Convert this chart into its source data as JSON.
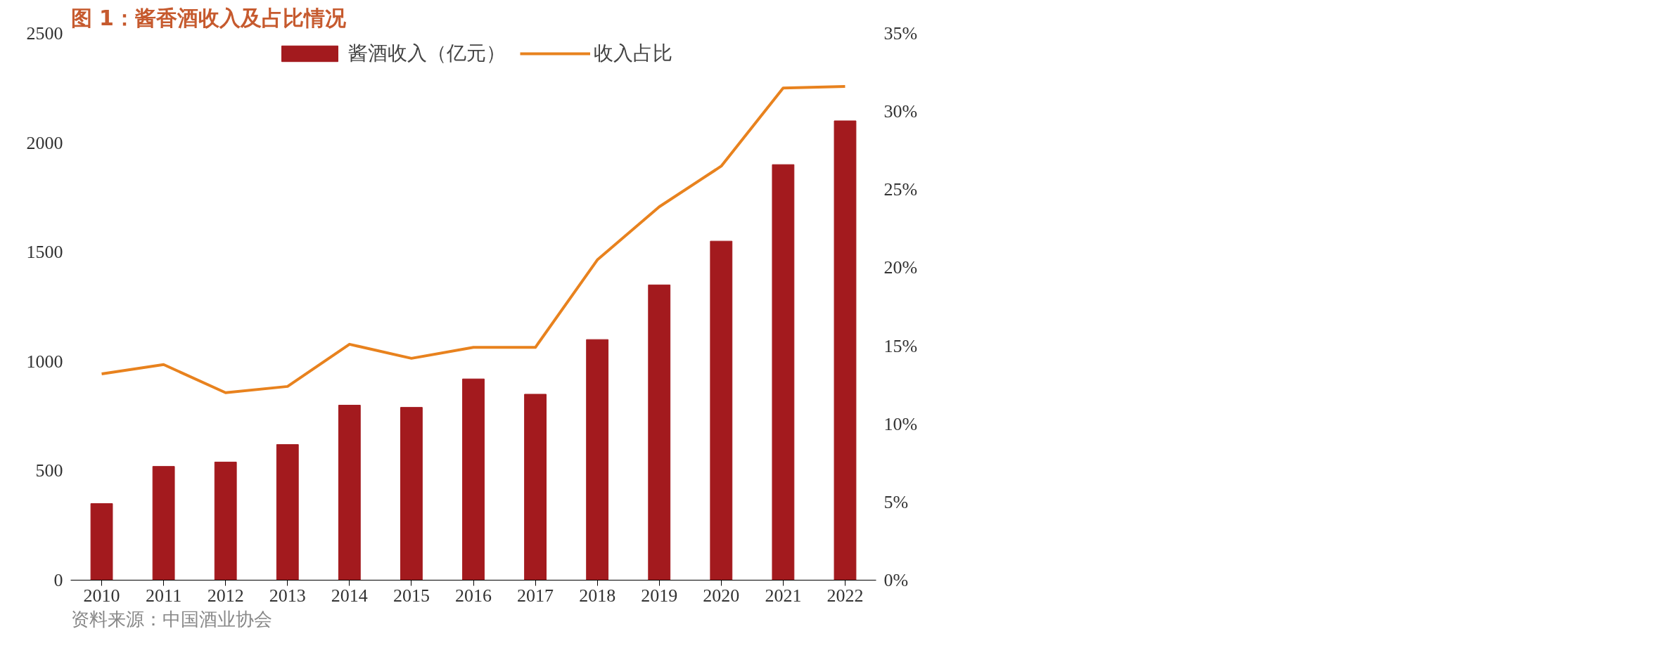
{
  "chart_data": {
    "type": "bar",
    "title": "图 1：酱香酒收入及占比情况",
    "categories": [
      "2010",
      "2011",
      "2012",
      "2013",
      "2014",
      "2015",
      "2016",
      "2017",
      "2018",
      "2019",
      "2020",
      "2021",
      "2022"
    ],
    "series": [
      {
        "name": "酱酒收入（亿元）",
        "color": "#a31a1e",
        "values": [
          350,
          520,
          540,
          620,
          800,
          790,
          920,
          850,
          1100,
          1350,
          1550,
          1900,
          2100
        ]
      },
      {
        "name": "收入占比",
        "type": "line",
        "axis": "y2",
        "color": "#e8821e",
        "values": [
          13.2,
          13.8,
          12.0,
          12.4,
          15.1,
          14.2,
          14.9,
          14.9,
          20.5,
          23.9,
          26.5,
          31.5,
          31.6
        ]
      }
    ],
    "ylim": [
      0,
      2500
    ],
    "yticks": [
      0,
      500,
      1000,
      1500,
      2000,
      2500
    ],
    "y2lim": [
      0,
      35
    ],
    "y2ticks": [
      {
        "value": 0,
        "label": "0%"
      },
      {
        "value": 5,
        "label": "5%"
      },
      {
        "value": 10,
        "label": "10%"
      },
      {
        "value": 15,
        "label": "15%"
      },
      {
        "value": 20,
        "label": "20%"
      },
      {
        "value": 25,
        "label": "25%"
      },
      {
        "value": 30,
        "label": "30%"
      },
      {
        "value": 35,
        "label": "35%"
      }
    ],
    "legend": "top",
    "grid": false,
    "marker": "none",
    "annotations": [
      "资料来源：中国酒业协会"
    ]
  }
}
